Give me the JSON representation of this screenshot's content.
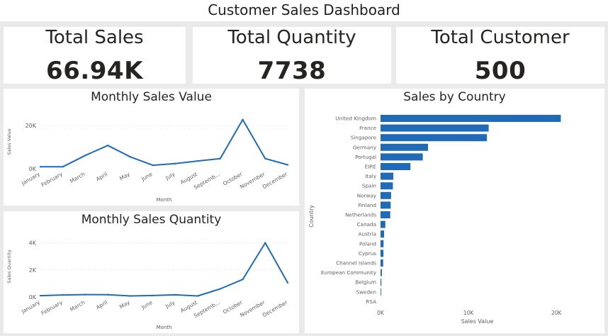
{
  "dashboard": {
    "title": "Customer Sales Dashboard"
  },
  "kpis": [
    {
      "label": "Total Sales",
      "value": "66.94K"
    },
    {
      "label": "Total Quantity",
      "value": "7738"
    },
    {
      "label": "Total Customer",
      "value": "500"
    }
  ],
  "colors": {
    "line": "#1f6bb8",
    "bar": "#1f6bb8",
    "axis_text": "#605e5c",
    "grid": "#d9d9d9"
  },
  "chart_data": [
    {
      "type": "line",
      "title": "Monthly Sales Value",
      "xlabel": "Month",
      "ylabel": "Sales Value",
      "categories": [
        "January",
        "February",
        "March",
        "April",
        "May",
        "June",
        "July",
        "August",
        "Septemb...",
        "October",
        "November",
        "December"
      ],
      "values": [
        900,
        900,
        6200,
        10800,
        5500,
        1600,
        2400,
        3600,
        4700,
        22800,
        4700,
        1800
      ],
      "ylim": [
        0,
        25000
      ],
      "yticks": [
        0,
        20000
      ],
      "ytick_labels": [
        "0K",
        "20K"
      ],
      "grid": true
    },
    {
      "type": "line",
      "title": "Monthly Sales Quantity",
      "xlabel": "Month",
      "ylabel": "Sales Quantity",
      "categories": [
        "January",
        "February",
        "March",
        "April",
        "May",
        "June",
        "July",
        "August",
        "Septemb...",
        "October",
        "November",
        "December"
      ],
      "values": [
        100,
        150,
        180,
        170,
        80,
        110,
        160,
        80,
        600,
        1300,
        4000,
        1050
      ],
      "ylim": [
        0,
        4500
      ],
      "yticks": [
        0,
        2000,
        4000
      ],
      "ytick_labels": [
        "0K",
        "2K",
        "4K"
      ],
      "grid": true
    },
    {
      "type": "bar",
      "orientation": "horizontal",
      "title": "Sales by Country",
      "xlabel": "Sales Value",
      "ylabel": "Country",
      "categories": [
        "United Kingdom",
        "France",
        "Singapore",
        "Germany",
        "Portugal",
        "EIRE",
        "Italy",
        "Spain",
        "Norway",
        "Finland",
        "Netherlands",
        "Canada",
        "Austria",
        "Poland",
        "Cyprus",
        "Channel Islands",
        "European Community",
        "Belgium",
        "Sweden",
        "RSA"
      ],
      "values": [
        20500,
        12300,
        12100,
        5400,
        4800,
        3400,
        1450,
        1400,
        1200,
        1150,
        1100,
        550,
        400,
        350,
        330,
        300,
        150,
        100,
        70,
        0
      ],
      "xlim": [
        0,
        22000
      ],
      "xticks": [
        0,
        10000,
        20000
      ],
      "xtick_labels": [
        "0K",
        "10K",
        "20K"
      ]
    }
  ]
}
